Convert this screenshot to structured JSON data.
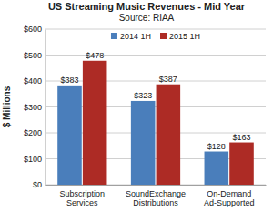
{
  "chart_data": {
    "type": "bar",
    "title": "US Streaming Music Revenues - Mid Year",
    "subtitle": "Source: RIAA",
    "ylabel": "$ Millions",
    "categories": [
      "Subscription Services",
      "SoundExchange Distributions",
      "On-Demand Ad-Supported"
    ],
    "series": [
      {
        "name": "2014 1H",
        "color": "#4a7ebb",
        "values": [
          383,
          323,
          128
        ],
        "value_labels": [
          "$383",
          "$323",
          "$128"
        ]
      },
      {
        "name": "2015 1H",
        "color": "#ad2b25",
        "values": [
          478,
          387,
          163
        ],
        "value_labels": [
          "$478",
          "$387",
          "$163"
        ]
      }
    ],
    "ylim": [
      0,
      600
    ],
    "yticks": [
      {
        "value": 0,
        "label": "$0"
      },
      {
        "value": 100,
        "label": "$100"
      },
      {
        "value": 200,
        "label": "$200"
      },
      {
        "value": 300,
        "label": "$300"
      },
      {
        "value": 400,
        "label": "$400"
      },
      {
        "value": 500,
        "label": "$500"
      },
      {
        "value": 600,
        "label": "$600"
      }
    ],
    "grid": true,
    "legend": "top",
    "data_labels": true
  }
}
